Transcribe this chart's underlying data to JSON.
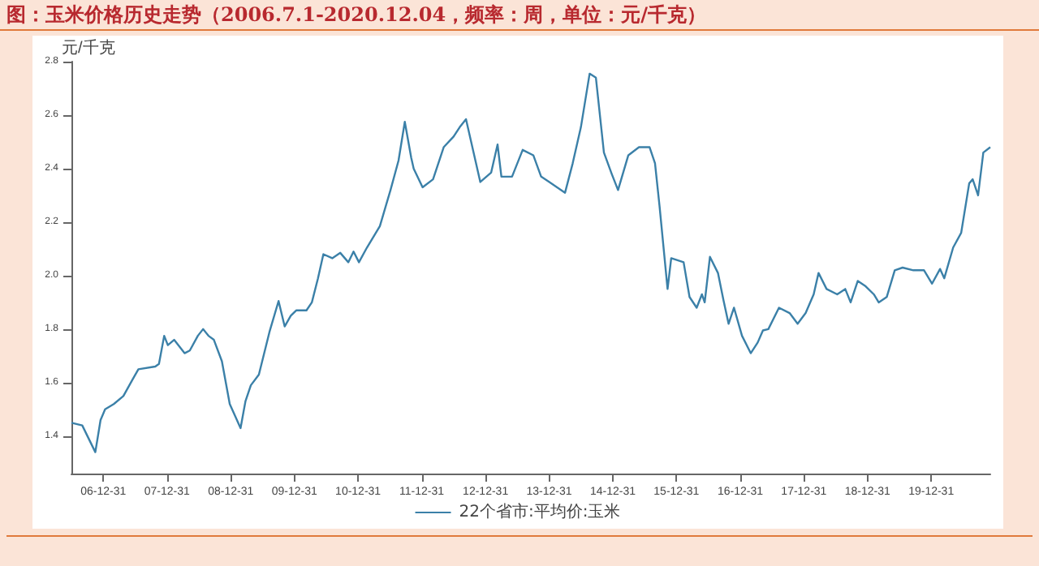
{
  "chart_data": {
    "type": "line",
    "title": "图：玉米价格历史走势（2006.7.1-2020.12.04，频率：周，单位：元/千克）",
    "ylabel": "元/千克",
    "x": [
      "2006-07-01",
      "2006-09-01",
      "2006-11-15",
      "2006-12-15",
      "2007-01-10",
      "2007-03-01",
      "2007-04-25",
      "2007-06-15",
      "2007-07-20",
      "2007-10-25",
      "2007-11-15",
      "2007-12-15",
      "2008-01-05",
      "2008-02-10",
      "2008-04-10",
      "2008-05-10",
      "2008-06-25",
      "2008-07-25",
      "2008-08-25",
      "2008-09-25",
      "2008-11-10",
      "2008-12-25",
      "2009-02-25",
      "2009-03-25",
      "2009-04-25",
      "2009-06-10",
      "2009-08-10",
      "2009-10-01",
      "2009-11-05",
      "2009-12-10",
      "2010-01-10",
      "2010-03-10",
      "2010-04-10",
      "2010-05-15",
      "2010-06-15",
      "2010-08-05",
      "2010-09-20",
      "2010-11-05",
      "2010-12-05",
      "2011-01-05",
      "2011-02-20",
      "2011-05-05",
      "2011-07-05",
      "2011-08-20",
      "2011-09-25",
      "2011-11-01",
      "2011-11-15",
      "2012-01-05",
      "2012-03-05",
      "2012-05-05",
      "2012-07-01",
      "2012-08-05",
      "2012-09-10",
      "2012-12-01",
      "2013-02-01",
      "2013-03-10",
      "2013-04-01",
      "2013-06-01",
      "2013-08-01",
      "2013-10-01",
      "2013-11-15",
      "2014-01-01",
      "2014-04-01",
      "2014-05-15",
      "2014-07-01",
      "2014-08-20",
      "2014-09-25",
      "2014-11-10",
      "2014-12-25",
      "2015-01-30",
      "2015-03-30",
      "2015-05-30",
      "2015-07-30",
      "2015-08-30",
      "2015-09-25",
      "2015-11-10",
      "2015-12-01",
      "2016-02-10",
      "2016-03-15",
      "2016-04-25",
      "2016-05-25",
      "2016-06-10",
      "2016-07-10",
      "2016-08-25",
      "2016-09-25",
      "2016-10-25",
      "2016-11-25",
      "2017-01-10",
      "2017-03-01",
      "2017-04-10",
      "2017-05-10",
      "2017-06-10",
      "2017-08-10",
      "2017-10-10",
      "2017-11-25",
      "2018-01-10",
      "2018-02-25",
      "2018-03-25",
      "2018-05-10",
      "2018-07-10",
      "2018-08-25",
      "2018-09-25",
      "2018-11-05",
      "2018-12-20",
      "2019-02-05",
      "2019-03-05",
      "2019-04-20",
      "2019-06-05",
      "2019-07-20",
      "2019-09-20",
      "2019-11-20",
      "2020-01-05",
      "2020-02-20",
      "2020-03-15",
      "2020-05-05",
      "2020-06-20",
      "2020-08-05",
      "2020-08-25",
      "2020-09-25",
      "2020-10-25",
      "2020-12-04"
    ],
    "series": [
      {
        "name": "22个省市:平均价:玉米",
        "color": "#3b80a8",
        "values": [
          1.45,
          1.44,
          1.34,
          1.46,
          1.5,
          1.52,
          1.55,
          1.61,
          1.65,
          1.66,
          1.67,
          1.775,
          1.74,
          1.76,
          1.71,
          1.72,
          1.775,
          1.8,
          1.775,
          1.76,
          1.68,
          1.52,
          1.43,
          1.53,
          1.59,
          1.63,
          1.79,
          1.905,
          1.81,
          1.85,
          1.87,
          1.87,
          1.9,
          1.99,
          2.08,
          2.065,
          2.085,
          2.05,
          2.09,
          2.05,
          2.105,
          2.185,
          2.32,
          2.43,
          2.575,
          2.44,
          2.4,
          2.33,
          2.36,
          2.48,
          2.52,
          2.555,
          2.585,
          2.35,
          2.385,
          2.49,
          2.37,
          2.37,
          2.47,
          2.45,
          2.37,
          2.35,
          2.31,
          2.42,
          2.555,
          2.755,
          2.74,
          2.46,
          2.38,
          2.32,
          2.45,
          2.48,
          2.48,
          2.42,
          2.26,
          1.95,
          2.065,
          2.05,
          1.92,
          1.88,
          1.93,
          1.9,
          2.07,
          2.01,
          1.91,
          1.82,
          1.88,
          1.775,
          1.71,
          1.75,
          1.795,
          1.8,
          1.88,
          1.86,
          1.82,
          1.86,
          1.93,
          2.01,
          1.95,
          1.93,
          1.95,
          1.9,
          1.98,
          1.96,
          1.93,
          1.9,
          1.92,
          2.02,
          2.03,
          2.02,
          2.02,
          1.97,
          2.025,
          1.99,
          2.105,
          2.16,
          2.345,
          2.36,
          2.3,
          2.46,
          2.48
        ]
      }
    ],
    "xlim": [
      "2006-07-01",
      "2020-12-04"
    ],
    "xticks": [
      {
        "value": "2006-12-31",
        "label": "06-12-31"
      },
      {
        "value": "2007-12-31",
        "label": "07-12-31"
      },
      {
        "value": "2008-12-31",
        "label": "08-12-31"
      },
      {
        "value": "2009-12-31",
        "label": "09-12-31"
      },
      {
        "value": "2010-12-31",
        "label": "10-12-31"
      },
      {
        "value": "2011-12-31",
        "label": "11-12-31"
      },
      {
        "value": "2012-12-31",
        "label": "12-12-31"
      },
      {
        "value": "2013-12-31",
        "label": "13-12-31"
      },
      {
        "value": "2014-12-31",
        "label": "14-12-31"
      },
      {
        "value": "2015-12-31",
        "label": "15-12-31"
      },
      {
        "value": "2016-12-31",
        "label": "16-12-31"
      },
      {
        "value": "2017-12-31",
        "label": "17-12-31"
      },
      {
        "value": "2018-12-31",
        "label": "18-12-31"
      },
      {
        "value": "2019-12-31",
        "label": "19-12-31"
      }
    ],
    "ylim": [
      1.26,
      2.8
    ],
    "yticks": [
      1.4,
      1.6,
      1.8,
      {
        "value": 2,
        "label": "2.0"
      },
      2.2,
      2.4,
      2.6,
      2.8
    ],
    "grid": false,
    "legend": "bottom",
    "marker": "none",
    "line_style": "solid"
  }
}
